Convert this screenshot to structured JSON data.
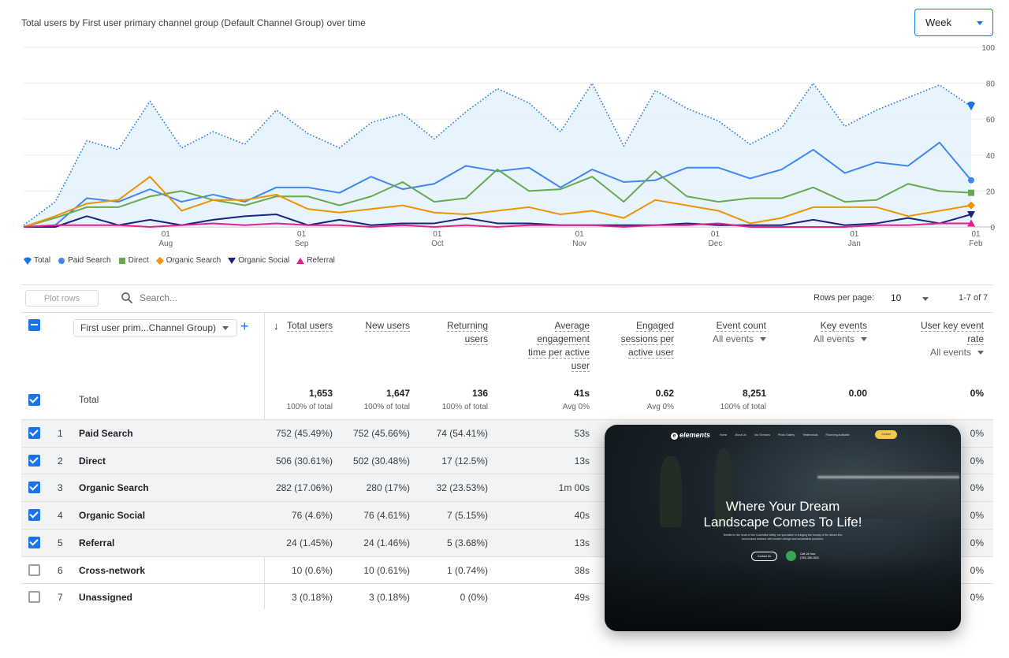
{
  "header": {
    "chart_title": "Total users by First user primary channel group (Default Channel Group) over time",
    "granularity": "Week"
  },
  "chart_data": {
    "type": "line",
    "title": "Total users by First user primary channel group (Default Channel Group) over time",
    "xlabel": "",
    "ylabel": "",
    "ylim": [
      0,
      100
    ],
    "yticks": [
      0,
      20,
      40,
      60,
      80,
      100
    ],
    "xticks": [
      {
        "day": "01",
        "month": "Aug"
      },
      {
        "day": "01",
        "month": "Sep"
      },
      {
        "day": "01",
        "month": "Oct"
      },
      {
        "day": "01",
        "month": "Nov"
      },
      {
        "day": "01",
        "month": "Dec"
      },
      {
        "day": "01",
        "month": "Jan"
      },
      {
        "day": "01",
        "month": "Feb"
      }
    ],
    "grid": true,
    "legend_position": "bottom-left",
    "series": [
      {
        "name": "Total",
        "color": "#1a73e8",
        "marker": "pin",
        "values": [
          1,
          14,
          48,
          43,
          70,
          44,
          53,
          46,
          65,
          52,
          44,
          58,
          63,
          49,
          64,
          77,
          69,
          53,
          80,
          45,
          76,
          66,
          59,
          46,
          55,
          80,
          56,
          65,
          72,
          79,
          67
        ]
      },
      {
        "name": "Paid Search",
        "color": "#4285f4",
        "marker": "circle",
        "values": [
          0,
          1,
          16,
          14,
          21,
          14,
          18,
          14,
          22,
          22,
          19,
          28,
          21,
          24,
          34,
          31,
          33,
          22,
          32,
          25,
          26,
          33,
          33,
          27,
          32,
          43,
          30,
          36,
          34,
          47,
          26
        ]
      },
      {
        "name": "Direct",
        "color": "#6aa84f",
        "marker": "square",
        "values": [
          0,
          5,
          11,
          11,
          17,
          20,
          15,
          12,
          17,
          17,
          12,
          17,
          25,
          14,
          16,
          32,
          20,
          21,
          28,
          14,
          31,
          17,
          14,
          16,
          16,
          22,
          14,
          15,
          24,
          20,
          19
        ]
      },
      {
        "name": "Organic Search",
        "color": "#f09300",
        "marker": "diamond",
        "values": [
          0,
          6,
          13,
          15,
          28,
          9,
          15,
          15,
          18,
          10,
          8,
          10,
          12,
          8,
          7,
          9,
          11,
          7,
          9,
          5,
          15,
          12,
          9,
          2,
          5,
          11,
          11,
          11,
          6,
          9,
          12
        ]
      },
      {
        "name": "Organic Social",
        "color": "#1a237e",
        "marker": "triangle-down",
        "values": [
          0,
          0,
          6,
          1,
          4,
          1,
          4,
          6,
          7,
          1,
          4,
          1,
          2,
          2,
          5,
          2,
          2,
          1,
          1,
          1,
          1,
          2,
          1,
          1,
          1,
          4,
          1,
          2,
          5,
          2,
          7
        ]
      },
      {
        "name": "Referral",
        "color": "#e91e8c",
        "marker": "triangle-up",
        "values": [
          0,
          1,
          1,
          1,
          0,
          1,
          2,
          1,
          2,
          1,
          1,
          0,
          1,
          0,
          1,
          0,
          1,
          1,
          1,
          0,
          1,
          1,
          2,
          0,
          0,
          0,
          0,
          1,
          1,
          2,
          2
        ]
      }
    ]
  },
  "toolbar": {
    "plot_rows": "Plot rows",
    "search_placeholder": "Search...",
    "rows_per_page_label": "Rows per page:",
    "rows_per_page_value": "10",
    "pagination": "1-7 of 7"
  },
  "table": {
    "dimension_select": "First user prim...Channel Group)",
    "columns": [
      {
        "label": "Total users"
      },
      {
        "label": "New users"
      },
      {
        "label": "Returning users"
      },
      {
        "label": "Average engagement time per active user"
      },
      {
        "label": "Engaged sessions per active user"
      },
      {
        "label": "Event count",
        "sub": "All events"
      },
      {
        "label": "Key events",
        "sub": "All events"
      },
      {
        "label": "User key event rate",
        "sub": "All events"
      }
    ],
    "total": {
      "label": "Total",
      "values": [
        "1,653",
        "1,647",
        "136",
        "41s",
        "0.62",
        "8,251",
        "0.00",
        "0%"
      ],
      "subs": [
        "100% of total",
        "100% of total",
        "100% of total",
        "Avg 0%",
        "Avg 0%",
        "100% of total",
        "",
        ""
      ]
    },
    "rows": [
      {
        "num": "1",
        "name": "Paid Search",
        "checked": true,
        "total_users": "752 (45.49%)",
        "new_users": "752 (45.66%)",
        "returning": "74 (54.41%)",
        "avg_time": "53s",
        "rate": "0%"
      },
      {
        "num": "2",
        "name": "Direct",
        "checked": true,
        "total_users": "506 (30.61%)",
        "new_users": "502 (30.48%)",
        "returning": "17 (12.5%)",
        "avg_time": "13s",
        "rate": "0%"
      },
      {
        "num": "3",
        "name": "Organic Search",
        "checked": true,
        "total_users": "282 (17.06%)",
        "new_users": "280 (17%)",
        "returning": "32 (23.53%)",
        "avg_time": "1m 00s",
        "rate": "0%"
      },
      {
        "num": "4",
        "name": "Organic Social",
        "checked": true,
        "total_users": "76 (4.6%)",
        "new_users": "76 (4.61%)",
        "returning": "7 (5.15%)",
        "avg_time": "40s",
        "rate": "0%"
      },
      {
        "num": "5",
        "name": "Referral",
        "checked": true,
        "total_users": "24 (1.45%)",
        "new_users": "24 (1.46%)",
        "returning": "5 (3.68%)",
        "avg_time": "13s",
        "rate": "0%"
      },
      {
        "num": "6",
        "name": "Cross-network",
        "checked": false,
        "total_users": "10 (0.6%)",
        "new_users": "10 (0.61%)",
        "returning": "1 (0.74%)",
        "avg_time": "38s",
        "rate": "0%"
      },
      {
        "num": "7",
        "name": "Unassigned",
        "checked": false,
        "total_users": "3 (0.18%)",
        "new_users": "3 (0.18%)",
        "returning": "0 (0%)",
        "avg_time": "49s",
        "rate": "0%"
      }
    ]
  },
  "overlay": {
    "logo": "elements",
    "nav": [
      "Home",
      "About Us",
      "Our Services",
      "Photo Gallery",
      "Testimonials",
      "Financing Available"
    ],
    "contact": "Contact",
    "headline_line1": "Where Your Dream",
    "headline_line2": "Landscape Comes To Life!",
    "tagline": "Nestled in the heart of the Coachella Valley, we specialize in bringing the beauty of the desert into harmonious balance with modern design and sustainable practices.",
    "cta": "Contact Us",
    "call_label": "Call Us Now",
    "call_number": "(760) 285-2622"
  }
}
